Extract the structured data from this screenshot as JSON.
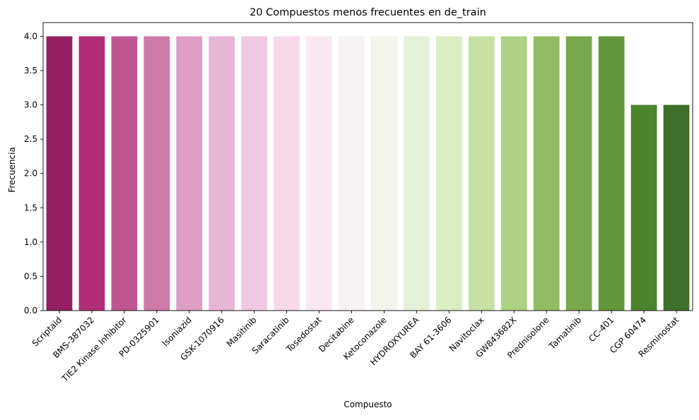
{
  "chart_data": {
    "type": "bar",
    "title": "20 Compuestos menos frecuentes en de_train",
    "xlabel": "Compuesto",
    "ylabel": "Frecuencia",
    "ylim": [
      0,
      4.2
    ],
    "yticks": [
      "0.0",
      "0.5",
      "1.0",
      "1.5",
      "2.0",
      "2.5",
      "3.0",
      "3.5",
      "4.0"
    ],
    "grid": false,
    "legend": "none",
    "categories": [
      "Scriptaid",
      "BMS-387032",
      "TIE2 Kinase Inhibitor",
      "PD-0325901",
      "Isoniazid",
      "GSK-1070916",
      "Masitinib",
      "Saracatinib",
      "Tosedostat",
      "Decitabine",
      "Ketoconazole",
      "HYDROXYUREA",
      "BAY 61-3606",
      "Navitoclax",
      "GW843682X",
      "Prednisolone",
      "Tamatinib",
      "CC-401",
      "CGP 60474",
      "Resminostat"
    ],
    "values": [
      4,
      4,
      4,
      4,
      4,
      4,
      4,
      4,
      4,
      4,
      4,
      4,
      4,
      4,
      4,
      4,
      4,
      4,
      3,
      3
    ],
    "colors": [
      "#951f63",
      "#b12d78",
      "#bf5690",
      "#ce7aa8",
      "#df9ec4",
      "#e9b5d5",
      "#f1c8e2",
      "#f7d9ea",
      "#f9e8f1",
      "#f7f3f5",
      "#f1f5ec",
      "#e5f1d7",
      "#dbedc3",
      "#c7e0a6",
      "#aed184",
      "#92bc62",
      "#79a74b",
      "#63973b",
      "#4b842c",
      "#3e7029"
    ]
  }
}
